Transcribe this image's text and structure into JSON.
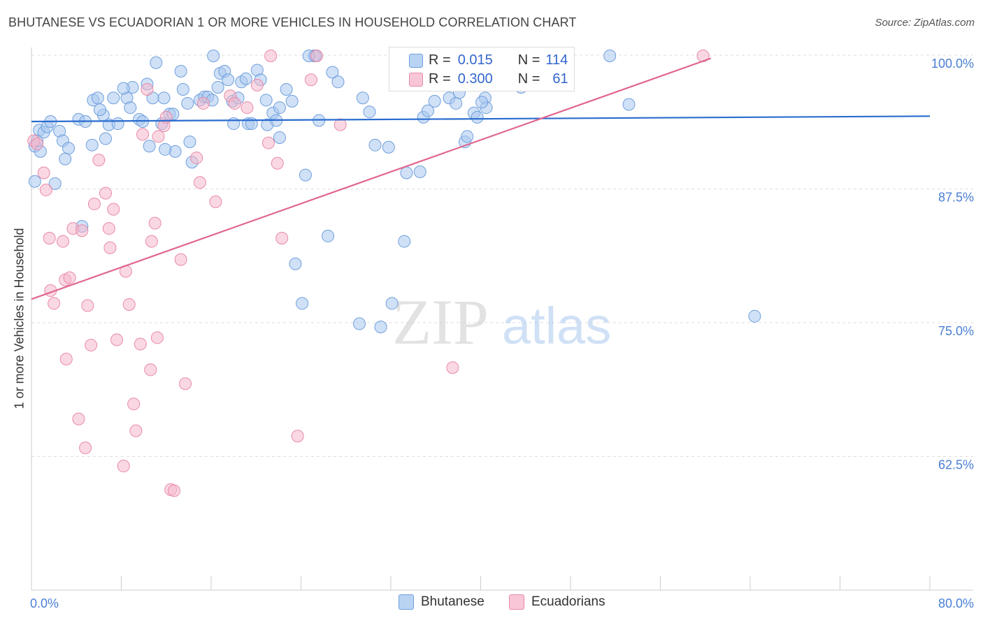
{
  "header": {
    "title": "BHUTANESE VS ECUADORIAN 1 OR MORE VEHICLES IN HOUSEHOLD CORRELATION CHART",
    "source": "Source: ZipAtlas.com"
  },
  "legend": {
    "rows": [
      {
        "r_label": "R =",
        "r_value": "0.015",
        "n_label": "N =",
        "n_value": "114"
      },
      {
        "r_label": "R =",
        "r_value": "0.300",
        "n_label": "N =",
        "n_value": "61"
      }
    ]
  },
  "watermark": {
    "zip": "ZIP",
    "atlas": "atlas"
  },
  "colors": {
    "blue_fill": "#a9c8f0",
    "blue_stroke": "#6f9fdc",
    "blue_line": "#2a6ccf",
    "pink_fill": "#f5b8cc",
    "pink_stroke": "#e88aa8",
    "pink_line": "#e0668f",
    "axis_label": "#4a7fd4",
    "grid": "#dddddd"
  },
  "chart_data": {
    "type": "scatter",
    "title": "BHUTANESE VS ECUADORIAN 1 OR MORE VEHICLES IN HOUSEHOLD CORRELATION CHART",
    "xlabel": "",
    "ylabel": "1 or more Vehicles in Household",
    "xlim": [
      0,
      80
    ],
    "ylim": [
      50,
      100
    ],
    "x_tick_labels": [
      "0.0%",
      "80.0%"
    ],
    "y_ticks": [
      62.5,
      75.0,
      87.5,
      100.0
    ],
    "y_tick_labels": [
      "62.5%",
      "75.0%",
      "87.5%",
      "100.0%"
    ],
    "grid": true,
    "legend_placement": "bottom-center",
    "series": [
      {
        "name": "Bhutanese",
        "r": 0.015,
        "n": 114,
        "trend": {
          "x": [
            0,
            80
          ],
          "y": [
            93.8,
            94.3
          ]
        },
        "points": [
          [
            0.3,
            91.5
          ],
          [
            0.5,
            92
          ],
          [
            0.7,
            93
          ],
          [
            0.8,
            91
          ],
          [
            1.1,
            92.8
          ],
          [
            1.4,
            93.3
          ],
          [
            1.7,
            93.8
          ],
          [
            2.5,
            92.9
          ],
          [
            2.8,
            92
          ],
          [
            3.3,
            91.3
          ],
          [
            4.2,
            94
          ],
          [
            4.8,
            93.8
          ],
          [
            5.4,
            91.6
          ],
          [
            5.5,
            95.8
          ],
          [
            5.9,
            96
          ],
          [
            6.4,
            94.4
          ],
          [
            6.6,
            92.2
          ],
          [
            6.9,
            93.5
          ],
          [
            7.3,
            96
          ],
          [
            7.7,
            93.6
          ],
          [
            8.5,
            96
          ],
          [
            8.8,
            95.1
          ],
          [
            9.0,
            97
          ],
          [
            9.6,
            94
          ],
          [
            9.9,
            93.8
          ],
          [
            10.3,
            97.3
          ],
          [
            10.5,
            91.5
          ],
          [
            10.8,
            96
          ],
          [
            11.1,
            99.3
          ],
          [
            11.6,
            93.6
          ],
          [
            11.8,
            96
          ],
          [
            12.3,
            94.5
          ],
          [
            12.6,
            94.5
          ],
          [
            12.8,
            91
          ],
          [
            13.3,
            98.5
          ],
          [
            13.5,
            96.8
          ],
          [
            13.9,
            95.5
          ],
          [
            14.1,
            91.9
          ],
          [
            14.3,
            90
          ],
          [
            15.0,
            95.8
          ],
          [
            15.4,
            96.1
          ],
          [
            15.7,
            96.1
          ],
          [
            16.1,
            95.8
          ],
          [
            16.6,
            97
          ],
          [
            16.8,
            98.3
          ],
          [
            17.2,
            98.5
          ],
          [
            17.5,
            97.7
          ],
          [
            17.9,
            95.7
          ],
          [
            18.4,
            96
          ],
          [
            18.7,
            97.5
          ],
          [
            19.1,
            97.8
          ],
          [
            19.3,
            93.6
          ],
          [
            19.6,
            93.6
          ],
          [
            20.1,
            98.6
          ],
          [
            20.4,
            97.7
          ],
          [
            20.9,
            95.8
          ],
          [
            21.0,
            93.5
          ],
          [
            21.5,
            94.6
          ],
          [
            22.1,
            95.1
          ],
          [
            22.7,
            96.8
          ],
          [
            23.2,
            95.7
          ],
          [
            23.5,
            80.5
          ],
          [
            24.1,
            76.8
          ],
          [
            24.4,
            88.8
          ],
          [
            25.2,
            100
          ],
          [
            25.3,
            100
          ],
          [
            26.4,
            83.1
          ],
          [
            26.8,
            98.4
          ],
          [
            27.3,
            97.5
          ],
          [
            29.2,
            74.9
          ],
          [
            29.5,
            96
          ],
          [
            30.1,
            94.7
          ],
          [
            30.6,
            91.6
          ],
          [
            31.1,
            74.6
          ],
          [
            31.8,
            91.4
          ],
          [
            32.1,
            76.8
          ],
          [
            33.2,
            82.6
          ],
          [
            33.4,
            89
          ],
          [
            34.6,
            89.1
          ],
          [
            34.9,
            94.2
          ],
          [
            35.3,
            94.8
          ],
          [
            35.9,
            95.7
          ],
          [
            37.2,
            96
          ],
          [
            37.8,
            95.5
          ],
          [
            38.1,
            96.5
          ],
          [
            38.6,
            91.9
          ],
          [
            38.8,
            92.4
          ],
          [
            39.4,
            94.6
          ],
          [
            39.7,
            94.2
          ],
          [
            40.4,
            96
          ],
          [
            40.5,
            95.1
          ],
          [
            40.9,
            98
          ],
          [
            42.8,
            100
          ],
          [
            43.6,
            97
          ],
          [
            43.7,
            100
          ],
          [
            46.7,
            100
          ],
          [
            51.5,
            100
          ],
          [
            53.2,
            95.4
          ],
          [
            64.4,
            75.6
          ],
          [
            0.3,
            88.2
          ],
          [
            2.1,
            88
          ],
          [
            4.5,
            84
          ],
          [
            6.1,
            94.9
          ],
          [
            8.2,
            96.9
          ],
          [
            16.2,
            100
          ],
          [
            18.0,
            93.6
          ],
          [
            21.8,
            93.9
          ],
          [
            25.6,
            93.9
          ],
          [
            3.0,
            90.3
          ],
          [
            11.9,
            91.2
          ],
          [
            22.1,
            92.3
          ],
          [
            24.7,
            100
          ],
          [
            36.6,
            97.5
          ],
          [
            40.1,
            95.6
          ]
        ]
      },
      {
        "name": "Ecuadorians",
        "r": 0.3,
        "n": 61,
        "trend": {
          "x": [
            0,
            60.5
          ],
          "y": [
            77.2,
            99.7
          ]
        },
        "points": [
          [
            0.2,
            92
          ],
          [
            0.5,
            91.7
          ],
          [
            1.1,
            89
          ],
          [
            1.3,
            87.4
          ],
          [
            1.6,
            82.9
          ],
          [
            1.7,
            78
          ],
          [
            2.0,
            76.8
          ],
          [
            2.8,
            82.6
          ],
          [
            3.0,
            79
          ],
          [
            3.1,
            71.6
          ],
          [
            3.4,
            79.2
          ],
          [
            3.7,
            83.8
          ],
          [
            4.2,
            66
          ],
          [
            4.5,
            83.6
          ],
          [
            4.8,
            63.3
          ],
          [
            5.0,
            76.6
          ],
          [
            5.3,
            72.9
          ],
          [
            5.6,
            86.1
          ],
          [
            6.0,
            90.2
          ],
          [
            6.6,
            87.1
          ],
          [
            6.9,
            83.8
          ],
          [
            7.0,
            82
          ],
          [
            7.3,
            85.6
          ],
          [
            7.6,
            73.4
          ],
          [
            8.2,
            61.6
          ],
          [
            8.4,
            79.8
          ],
          [
            8.7,
            76.7
          ],
          [
            9.1,
            67.4
          ],
          [
            9.3,
            64.9
          ],
          [
            9.7,
            73
          ],
          [
            9.9,
            92.6
          ],
          [
            10.3,
            96.8
          ],
          [
            10.6,
            70.6
          ],
          [
            10.7,
            82.6
          ],
          [
            11.0,
            84.3
          ],
          [
            11.3,
            92.4
          ],
          [
            11.8,
            93.4
          ],
          [
            12.0,
            94.2
          ],
          [
            12.4,
            59.4
          ],
          [
            12.7,
            59.3
          ],
          [
            13.3,
            80.9
          ],
          [
            13.7,
            69.3
          ],
          [
            14.7,
            90.4
          ],
          [
            15.0,
            88.1
          ],
          [
            15.3,
            95.5
          ],
          [
            16.4,
            86.3
          ],
          [
            17.7,
            96.2
          ],
          [
            18.1,
            95.5
          ],
          [
            19.2,
            95.1
          ],
          [
            20.1,
            97.2
          ],
          [
            21.1,
            91.8
          ],
          [
            21.3,
            100
          ],
          [
            21.9,
            89.9
          ],
          [
            22.3,
            82.9
          ],
          [
            23.7,
            64.4
          ],
          [
            24.9,
            97.7
          ],
          [
            25.4,
            100
          ],
          [
            27.5,
            93.5
          ],
          [
            37.5,
            70.8
          ],
          [
            59.8,
            100
          ],
          [
            11.2,
            73.6
          ]
        ]
      }
    ]
  },
  "bottom_legend": {
    "items": [
      "Bhutanese",
      "Ecuadorians"
    ]
  }
}
